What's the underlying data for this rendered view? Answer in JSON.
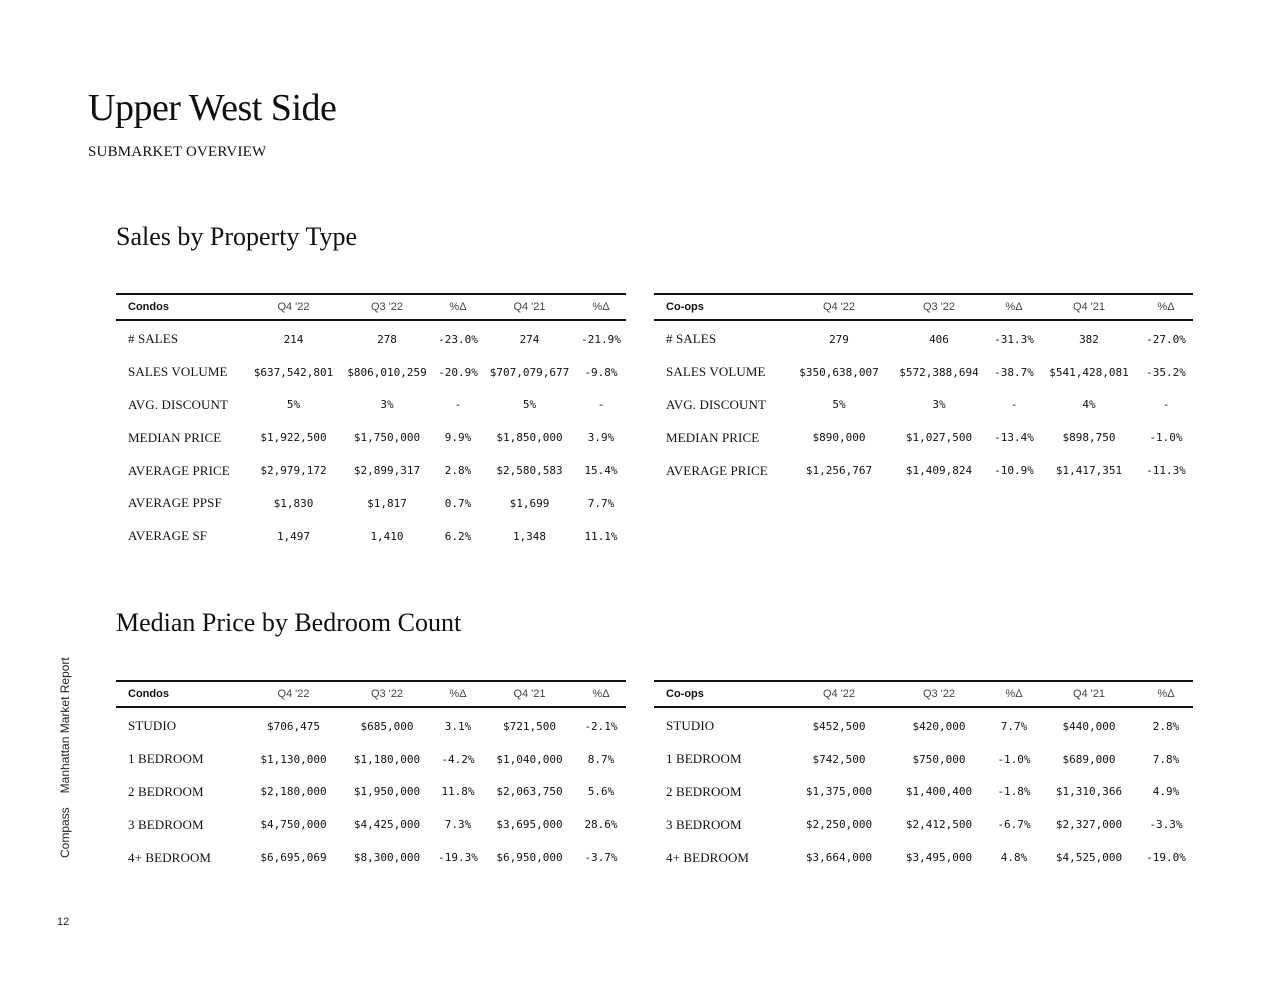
{
  "page": {
    "title": "Upper West Side",
    "subtitle": "SUBMARKET OVERVIEW",
    "side_label_brand": "Compass",
    "side_label_report": "Manhattan Market Report",
    "page_number": "12"
  },
  "sales_by_type": {
    "title": "Sales by Property Type",
    "condos": {
      "headers": [
        "Condos",
        "Q4 '22",
        "Q3 '22",
        "%Δ",
        "Q4 '21",
        "%Δ"
      ],
      "rows": [
        [
          "# SALES",
          "214",
          "278",
          "-23.0%",
          "274",
          "-21.9%"
        ],
        [
          "SALES VOLUME",
          "$637,542,801",
          "$806,010,259",
          "-20.9%",
          "$707,079,677",
          "-9.8%"
        ],
        [
          "AVG. DISCOUNT",
          "5%",
          "3%",
          "-",
          "5%",
          "-"
        ],
        [
          "MEDIAN PRICE",
          "$1,922,500",
          "$1,750,000",
          "9.9%",
          "$1,850,000",
          "3.9%"
        ],
        [
          "AVERAGE PRICE",
          "$2,979,172",
          "$2,899,317",
          "2.8%",
          "$2,580,583",
          "15.4%"
        ],
        [
          "AVERAGE PPSF",
          "$1,830",
          "$1,817",
          "0.7%",
          "$1,699",
          "7.7%"
        ],
        [
          "AVERAGE SF",
          "1,497",
          "1,410",
          "6.2%",
          "1,348",
          "11.1%"
        ]
      ]
    },
    "coops": {
      "headers": [
        "Co-ops",
        "Q4 '22",
        "Q3 '22",
        "%Δ",
        "Q4 '21",
        "%Δ"
      ],
      "rows": [
        [
          "# SALES",
          "279",
          "406",
          "-31.3%",
          "382",
          "-27.0%"
        ],
        [
          "SALES VOLUME",
          "$350,638,007",
          "$572,388,694",
          "-38.7%",
          "$541,428,081",
          "-35.2%"
        ],
        [
          "AVG. DISCOUNT",
          "5%",
          "3%",
          "-",
          "4%",
          "-"
        ],
        [
          "MEDIAN PRICE",
          "$890,000",
          "$1,027,500",
          "-13.4%",
          "$898,750",
          "-1.0%"
        ],
        [
          "AVERAGE PRICE",
          "$1,256,767",
          "$1,409,824",
          "-10.9%",
          "$1,417,351",
          "-11.3%"
        ]
      ]
    }
  },
  "median_by_bedroom": {
    "title": "Median Price by Bedroom Count",
    "condos": {
      "headers": [
        "Condos",
        "Q4 '22",
        "Q3 '22",
        "%Δ",
        "Q4 '21",
        "%Δ"
      ],
      "rows": [
        [
          "STUDIO",
          "$706,475",
          "$685,000",
          "3.1%",
          "$721,500",
          "-2.1%"
        ],
        [
          "1 BEDROOM",
          "$1,130,000",
          "$1,180,000",
          "-4.2%",
          "$1,040,000",
          "8.7%"
        ],
        [
          "2 BEDROOM",
          "$2,180,000",
          "$1,950,000",
          "11.8%",
          "$2,063,750",
          "5.6%"
        ],
        [
          "3 BEDROOM",
          "$4,750,000",
          "$4,425,000",
          "7.3%",
          "$3,695,000",
          "28.6%"
        ],
        [
          "4+ BEDROOM",
          "$6,695,069",
          "$8,300,000",
          "-19.3%",
          "$6,950,000",
          "-3.7%"
        ]
      ]
    },
    "coops": {
      "headers": [
        "Co-ops",
        "Q4 '22",
        "Q3 '22",
        "%Δ",
        "Q4 '21",
        "%Δ"
      ],
      "rows": [
        [
          "STUDIO",
          "$452,500",
          "$420,000",
          "7.7%",
          "$440,000",
          "2.8%"
        ],
        [
          "1 BEDROOM",
          "$742,500",
          "$750,000",
          "-1.0%",
          "$689,000",
          "7.8%"
        ],
        [
          "2 BEDROOM",
          "$1,375,000",
          "$1,400,400",
          "-1.8%",
          "$1,310,366",
          "4.9%"
        ],
        [
          "3 BEDROOM",
          "$2,250,000",
          "$2,412,500",
          "-6.7%",
          "$2,327,000",
          "-3.3%"
        ],
        [
          "4+ BEDROOM",
          "$3,664,000",
          "$3,495,000",
          "4.8%",
          "$4,525,000",
          "-19.0%"
        ]
      ]
    }
  }
}
